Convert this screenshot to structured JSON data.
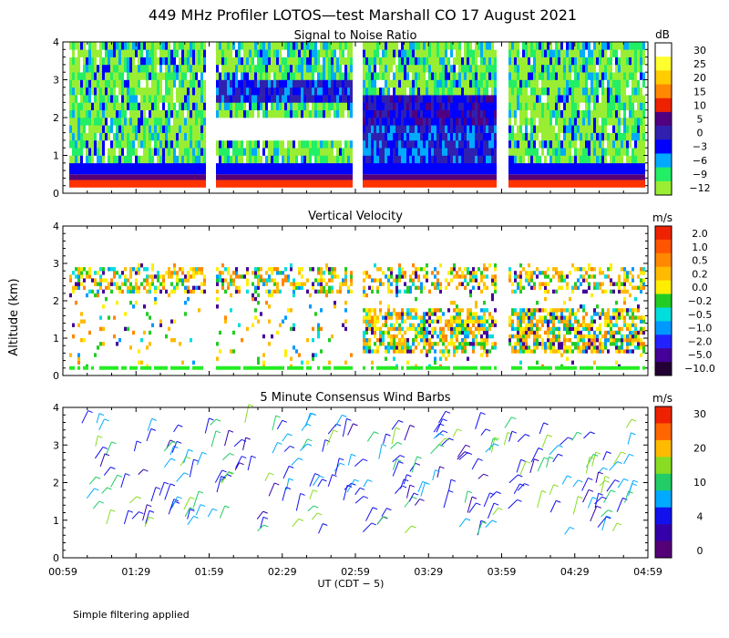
{
  "title": "449 MHz Profiler LOTOS—test Marshall CO 17 August 2021",
  "ylabel": "Altitude (km)",
  "xlabel": "UT  (CDT − 5)",
  "footnote": "Simple filtering applied",
  "chart_data": [
    {
      "type": "heatmap",
      "title": "Signal to Noise Ratio",
      "ylim": [
        0,
        4
      ],
      "yticks": [
        "0",
        "1",
        "2",
        "3",
        "4"
      ],
      "colorbar": {
        "unit": "dB",
        "labels": [
          "30",
          "25",
          "20",
          "15",
          "10",
          "5",
          "0",
          "−3",
          "−6",
          "−9",
          "−12"
        ],
        "colors": [
          "#ffffff",
          "#ffff30",
          "#ffcc00",
          "#ff8800",
          "#ee2200",
          "#500080",
          "#3020b0",
          "#0000ff",
          "#00aaff",
          "#22ee66",
          "#99ee33"
        ]
      },
      "gaps_ut": [
        "01:59",
        "02:59",
        "03:59"
      ]
    },
    {
      "type": "heatmap",
      "title": "Vertical Velocity",
      "ylim": [
        0,
        4
      ],
      "yticks": [
        "0",
        "1",
        "2",
        "3",
        "4"
      ],
      "colorbar": {
        "unit": "m/s",
        "labels": [
          "2.0",
          "1.0",
          "0.5",
          "0.2",
          "0.0",
          "−0.2",
          "−0.5",
          "−1.0",
          "−2.0",
          "−5.0",
          "−10.0"
        ],
        "colors": [
          "#ee2200",
          "#ff5500",
          "#ff8800",
          "#ffbb00",
          "#ffee00",
          "#22cc22",
          "#00dddd",
          "#0099ff",
          "#2222ff",
          "#440099",
          "#220033"
        ]
      }
    },
    {
      "type": "wind_barbs",
      "title": "5 Minute Consensus Wind Barbs",
      "ylim": [
        0,
        4
      ],
      "yticks": [
        "0",
        "1",
        "2",
        "3",
        "4"
      ],
      "colorbar": {
        "unit": "m/s",
        "labels": [
          "30",
          "20",
          "10",
          "4",
          "0"
        ],
        "colors": [
          "#ee2200",
          "#ff6600",
          "#ffbb00",
          "#88dd22",
          "#22cc66",
          "#00aaff",
          "#1111ee",
          "#3300aa",
          "#550077"
        ]
      }
    }
  ],
  "xaxis": {
    "ticks": [
      "00:59",
      "01:29",
      "01:59",
      "02:29",
      "02:59",
      "03:29",
      "03:59",
      "04:29",
      "04:59"
    ],
    "range_ut": [
      "00:59",
      "04:59"
    ]
  }
}
